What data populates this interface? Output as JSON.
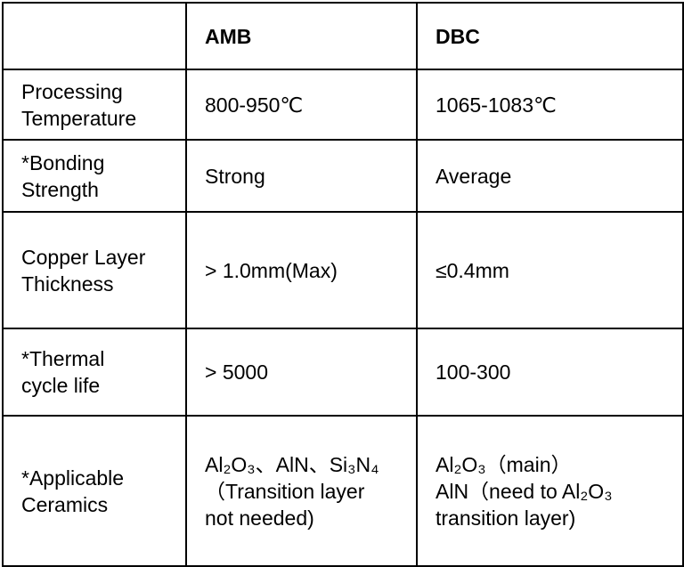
{
  "table": {
    "header": [
      "AMB",
      "DBC"
    ],
    "rows": [
      {
        "label": [
          "Processing",
          "Temperature"
        ],
        "amb": [
          "800-950℃"
        ],
        "dbc": [
          "1065-1083℃"
        ]
      },
      {
        "label": [
          "*Bonding",
          "Strength"
        ],
        "amb": [
          "Strong"
        ],
        "dbc": [
          "Average"
        ]
      },
      {
        "label": [
          "Copper Layer",
          "Thickness"
        ],
        "amb": [
          "> 1.0mm(Max)"
        ],
        "dbc": [
          "≤0.4mm"
        ]
      },
      {
        "label": [
          "*Thermal",
          "cycle life"
        ],
        "amb": [
          "> 5000"
        ],
        "dbc": [
          "100-300"
        ]
      },
      {
        "label": [
          "*Applicable",
          "Ceramics"
        ],
        "amb": [
          "Al₂O₃、AlN、Si₃N₄",
          "（Transition layer",
          "not needed)"
        ],
        "dbc": [
          "Al₂O₃（main）",
          "AlN（need to Al₂O₃",
          "transition layer)"
        ]
      }
    ]
  }
}
